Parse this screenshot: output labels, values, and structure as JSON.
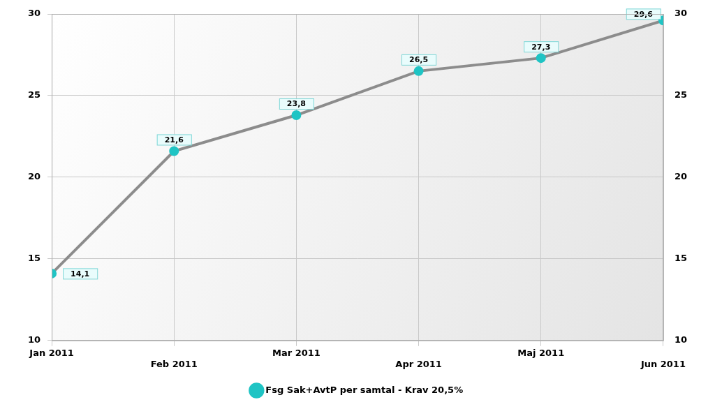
{
  "chart_data": {
    "type": "line",
    "categories": [
      "Jan 2011",
      "Feb 2011",
      "Mar 2011",
      "Apr 2011",
      "Maj 2011",
      "Jun 2011"
    ],
    "series": [
      {
        "name": "Fsg Sak+AvtP per samtal - Krav 20,5%",
        "color": "#8c8c8c",
        "marker": "circle",
        "values": [
          14.1,
          21.6,
          23.8,
          26.5,
          27.3,
          29.6
        ],
        "value_labels": [
          "14,1",
          "21,6",
          "23,8",
          "26,5",
          "27,3",
          "29,6"
        ]
      }
    ],
    "ylim": [
      10,
      30
    ],
    "yticks": [
      10,
      15,
      20,
      25,
      30
    ],
    "grid": true,
    "data_labels": true,
    "legend": "bottom"
  }
}
